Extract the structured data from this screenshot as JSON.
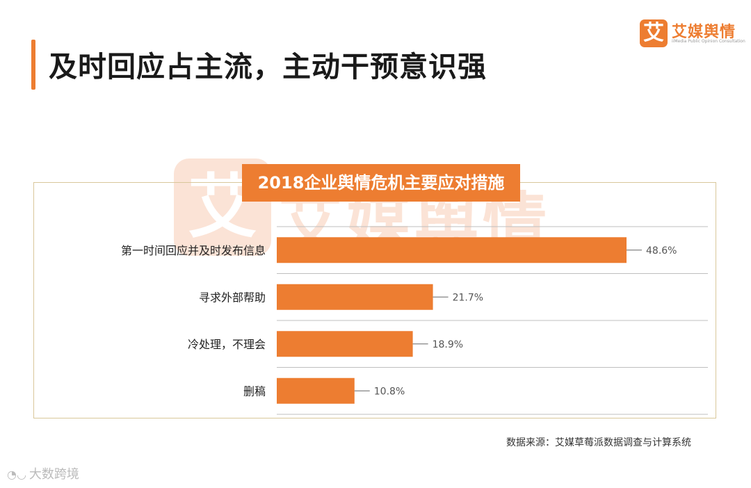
{
  "page": {
    "title": "及时回应占主流，主动干预意识强",
    "source": "数据来源：艾媒草莓派数据调查与计算系统",
    "bottom_watermark": "大数跨境"
  },
  "logo": {
    "box_char": "艾",
    "name": "艾媒舆情",
    "subtitle": "iiMedia Public Opinion Consultation"
  },
  "watermark": {
    "box_char": "艾",
    "text": "艾媒舆情"
  },
  "colors": {
    "accent": "#ed7d31",
    "title_block": "#ed7d31",
    "bar": "#ed7d31",
    "gridline": "#bfbfbf"
  },
  "chart_data": {
    "type": "bar",
    "orientation": "horizontal",
    "title": "2018企业舆情危机主要应对措施",
    "categories": [
      "第一时间回应并及时发布信息",
      "寻求外部帮助",
      "冷处理，不理会",
      "删稿"
    ],
    "values": [
      48.6,
      21.7,
      18.9,
      10.8
    ],
    "value_labels": [
      "48.6%",
      "21.7%",
      "18.9%",
      "10.8%"
    ],
    "unit": "%",
    "xlim": [
      0,
      60
    ],
    "grid": true,
    "legend": "none"
  }
}
